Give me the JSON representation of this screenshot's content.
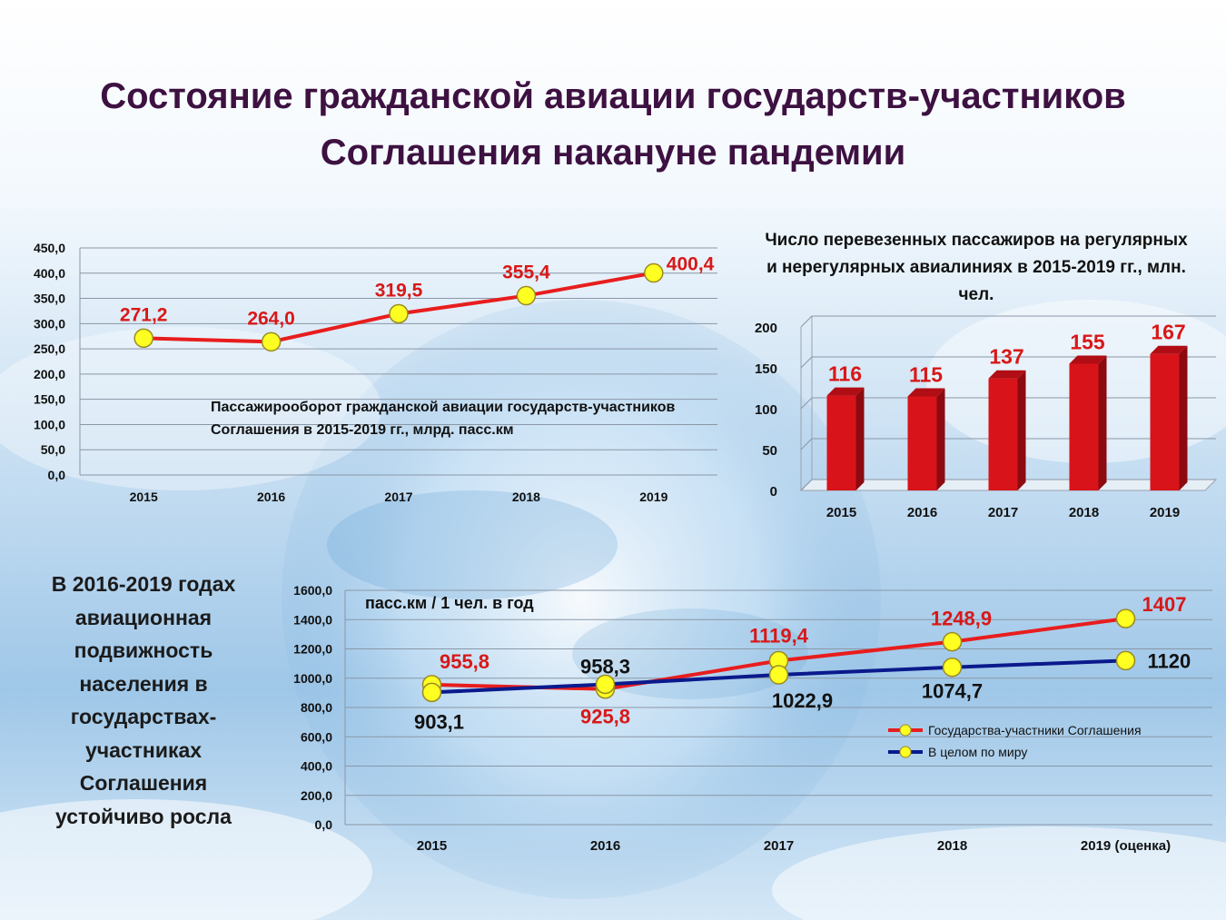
{
  "title": {
    "line1": "Состояние гражданской авиации государств-участников",
    "line2": "Соглашения накануне пандемии"
  },
  "side_text": "В 2016-2019  годах авиационная подвижность населения в государствах-участниках Соглашения устойчиво росла",
  "colors": {
    "title": "#3d1141",
    "red_line": "#e81d1d",
    "blue_line": "#0a1a8c",
    "marker_fill": "#ffff22",
    "bar_red": "#d8141a",
    "label_red": "#d81818"
  },
  "chart_data": [
    {
      "id": "passenger-turnover",
      "type": "line",
      "title": "Пассажирооборот гражданской авиации государств-участников Соглашения в 2015-2019 гг., млрд. пасс.км",
      "categories": [
        "2015",
        "2016",
        "2017",
        "2018",
        "2019"
      ],
      "series": [
        {
          "values": [
            271.2,
            264.0,
            319.5,
            355.4,
            400.4
          ]
        }
      ],
      "data_labels": [
        "271,2",
        "264,0",
        "319,5",
        "355,4",
        "400,4"
      ],
      "ylim": [
        0,
        450
      ],
      "yticks": [
        "0,0",
        "50,0",
        "100,0",
        "150,0",
        "200,0",
        "250,0",
        "300,0",
        "350,0",
        "400,0",
        "450,0"
      ],
      "grid": true
    },
    {
      "id": "passengers-carried",
      "type": "bar",
      "title": "Число перевезенных пассажиров на регулярных и нерегулярных авиалиниях в 2015-2019 гг., млн. чел.",
      "categories": [
        "2015",
        "2016",
        "2017",
        "2018",
        "2019"
      ],
      "values": [
        116,
        115,
        137,
        155,
        167
      ],
      "ylim": [
        0,
        200
      ],
      "yticks": [
        "0",
        "50",
        "100",
        "150",
        "200"
      ],
      "grid": true
    },
    {
      "id": "air-mobility",
      "type": "line",
      "ylabel": "пасс.км / 1 чел. в год",
      "categories": [
        "2015",
        "2016",
        "2017",
        "2018",
        "2019 (оценка)"
      ],
      "series": [
        {
          "name": "Государства-участники Соглашения",
          "values": [
            955.8,
            925.8,
            1119.4,
            1248.9,
            1407
          ],
          "labels": [
            "955,8",
            "925,8",
            "1119,4",
            "1248,9",
            "1407"
          ]
        },
        {
          "name": "В целом по миру",
          "values": [
            903.1,
            958.3,
            1022.9,
            1074.7,
            1120
          ],
          "labels": [
            "903,1",
            "958,3",
            "1022,9",
            "1074,7",
            "1120"
          ]
        }
      ],
      "ylim": [
        0,
        1600
      ],
      "yticks": [
        "0,0",
        "200,0",
        "400,0",
        "600,0",
        "800,0",
        "1000,0",
        "1200,0",
        "1400,0",
        "1600,0"
      ],
      "legend": "right",
      "grid": true
    }
  ]
}
